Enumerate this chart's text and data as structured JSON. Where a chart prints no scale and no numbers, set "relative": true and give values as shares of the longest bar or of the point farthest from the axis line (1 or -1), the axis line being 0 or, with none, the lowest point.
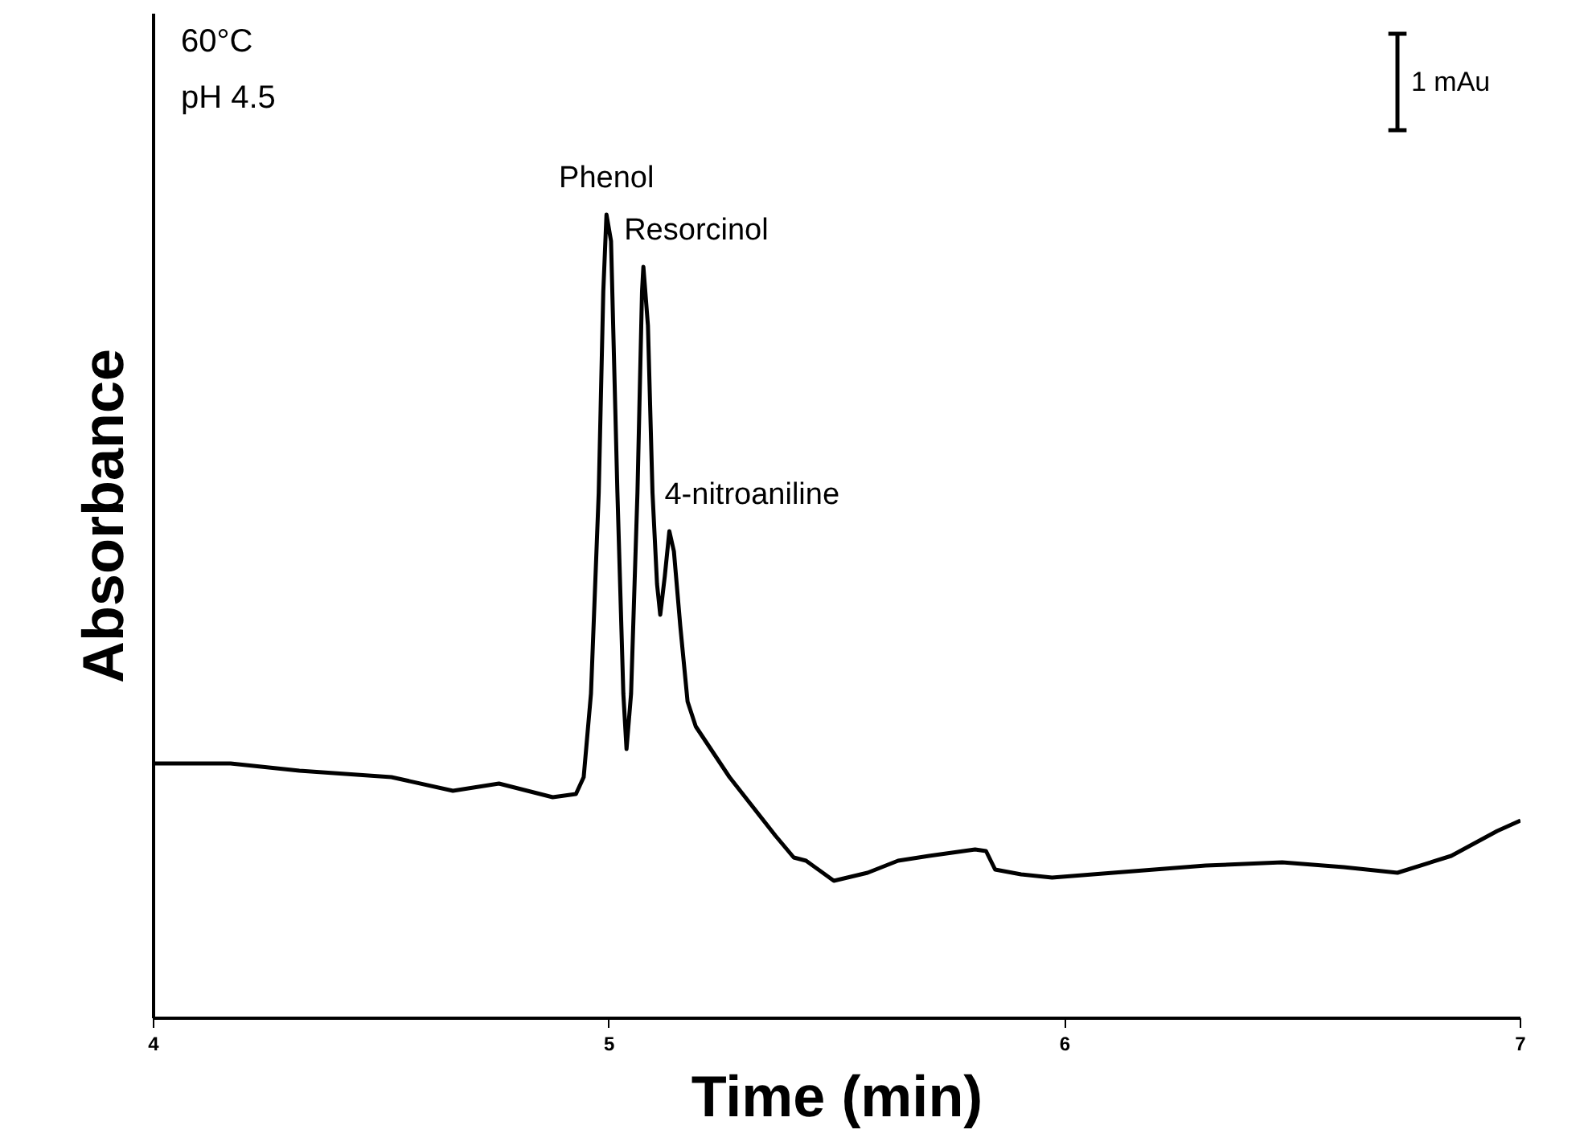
{
  "chart_data": {
    "type": "line",
    "xlabel": "Time (min)",
    "ylabel": "Absorbance",
    "relative": true,
    "xlim": [
      4,
      7
    ],
    "xticks": [
      4,
      5,
      6,
      7
    ],
    "grid": false,
    "marker": "none",
    "line_style": "solid",
    "annotations": [
      "60°C",
      "pH 4.5",
      "1 mAu",
      {
        "text": "Phenol",
        "x": 4.994,
        "y": 1.0
      },
      {
        "text": "Resorcinol",
        "x": 5.075,
        "y": 0.935
      },
      {
        "text": "4-nitroaniline",
        "x": 5.132,
        "y": 0.606
      }
    ],
    "series": [
      {
        "color": "#000000",
        "x": [
          4.0,
          4.169,
          4.32,
          4.522,
          4.657,
          4.758,
          4.876,
          4.927,
          4.944,
          4.96,
          4.977,
          4.987,
          4.994,
          5.004,
          5.018,
          5.031,
          5.038,
          5.048,
          5.062,
          5.072,
          5.075,
          5.085,
          5.095,
          5.105,
          5.112,
          5.122,
          5.132,
          5.142,
          5.156,
          5.172,
          5.19,
          5.264,
          5.365,
          5.405,
          5.432,
          5.493,
          5.567,
          5.634,
          5.702,
          5.803,
          5.827,
          5.847,
          5.904,
          5.972,
          6.106,
          6.309,
          6.477,
          6.612,
          6.73,
          6.848,
          6.949,
          7.0
        ],
        "values": [
          0.317,
          0.317,
          0.308,
          0.3,
          0.283,
          0.292,
          0.275,
          0.279,
          0.3,
          0.404,
          0.654,
          0.904,
          1.0,
          0.967,
          0.654,
          0.404,
          0.335,
          0.404,
          0.654,
          0.904,
          0.935,
          0.862,
          0.654,
          0.54,
          0.502,
          0.55,
          0.606,
          0.581,
          0.488,
          0.394,
          0.363,
          0.3,
          0.227,
          0.2,
          0.196,
          0.171,
          0.181,
          0.196,
          0.202,
          0.21,
          0.208,
          0.185,
          0.179,
          0.175,
          0.181,
          0.19,
          0.194,
          0.188,
          0.181,
          0.202,
          0.233,
          0.246
        ]
      }
    ]
  }
}
